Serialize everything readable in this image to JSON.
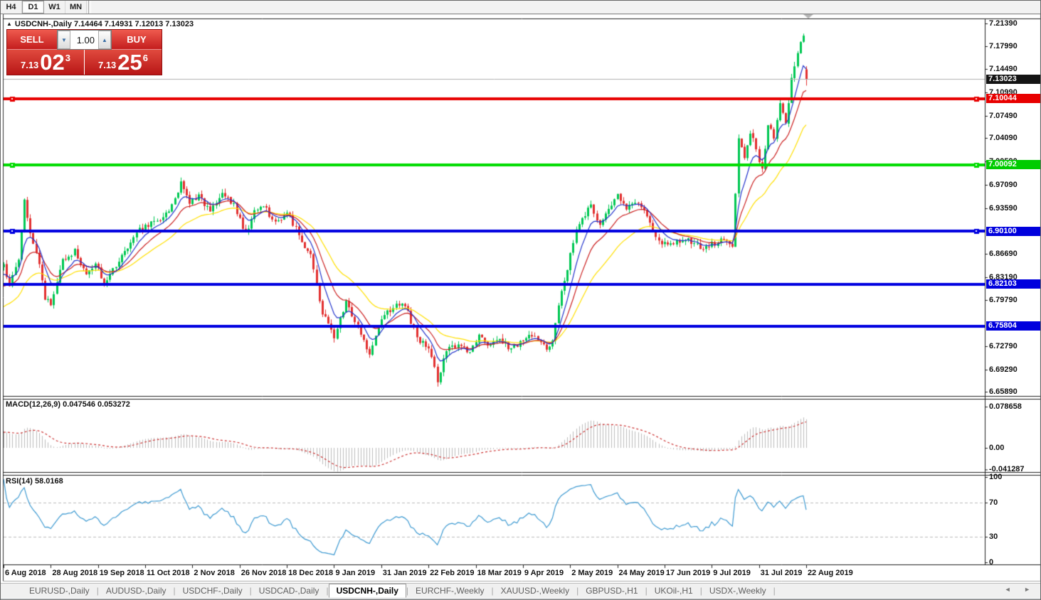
{
  "toolbar": {
    "buttons": [
      {
        "label": "H4",
        "active": false
      },
      {
        "label": "D1",
        "active": true
      },
      {
        "label": "W1",
        "active": false
      },
      {
        "label": "MN",
        "active": false
      }
    ]
  },
  "chart_header": {
    "direction_icon": "▲",
    "symbol": "USDCNH-,Daily",
    "open": "7.14464",
    "high": "7.14931",
    "low": "7.12013",
    "close": "7.13023"
  },
  "trade_panel": {
    "sell_label": "SELL",
    "buy_label": "BUY",
    "volume": "1.00",
    "down_arrow": "▼",
    "up_arrow": "▲",
    "sell_price": {
      "prefix": "7.13",
      "big": "02",
      "sup": "3"
    },
    "buy_price": {
      "prefix": "7.13",
      "big": "25",
      "sup": "6"
    }
  },
  "tabs": {
    "items": [
      {
        "label": "EURUSD-,Daily",
        "active": false
      },
      {
        "label": "AUDUSD-,Daily",
        "active": false
      },
      {
        "label": "USDCHF-,Daily",
        "active": false
      },
      {
        "label": "USDCAD-,Daily",
        "active": false
      },
      {
        "label": "USDCNH-,Daily",
        "active": true
      },
      {
        "label": "EURCHF-,Weekly",
        "active": false
      },
      {
        "label": "XAUUSD-,Weekly",
        "active": false
      },
      {
        "label": "GBPUSD-,H1",
        "active": false
      },
      {
        "label": "UKOil-,H1",
        "active": false
      },
      {
        "label": "USDX-,Weekly",
        "active": false
      }
    ],
    "left_arrow": "◄",
    "right_arrow": "►"
  },
  "chart_data": {
    "type": "candlestick",
    "title": "USDCNH-,Daily",
    "last_ohlc": {
      "open": 7.14464,
      "high": 7.14931,
      "low": 7.12013,
      "close": 7.13023
    },
    "y_axis": {
      "ticks": [
        "7.21390",
        "7.17990",
        "7.14490",
        "7.10990",
        "7.07490",
        "7.04090",
        "7.00590",
        "6.97090",
        "6.93590",
        "6.86690",
        "6.83190",
        "6.79790",
        "6.72790",
        "6.69290",
        "6.65890"
      ]
    },
    "x_axis": {
      "labels": [
        "6 Aug 2018",
        "28 Aug 2018",
        "19 Sep 2018",
        "11 Oct 2018",
        "2 Nov 2018",
        "26 Nov 2018",
        "18 Dec 2018",
        "9 Jan 2019",
        "31 Jan 2019",
        "22 Feb 2019",
        "18 Mar 2019",
        "9 Apr 2019",
        "2 May 2019",
        "24 May 2019",
        "17 Jun 2019",
        "9 Jul 2019",
        "31 Jul 2019",
        "22 Aug 2019"
      ]
    },
    "candles": {
      "count": 273,
      "seed": 42,
      "noise": 0.0045,
      "wick": 0.007,
      "up_color": "#00c853",
      "up_border": "#00a344",
      "down_color": "#e23030",
      "down_border": "#c01d1d",
      "prehistory": [
        [
          -60,
          6.64
        ],
        [
          -30,
          6.7
        ],
        [
          -15,
          6.77
        ],
        [
          -6,
          6.82
        ],
        [
          -1,
          6.85
        ]
      ],
      "waypoints": [
        [
          0,
          6.855
        ],
        [
          2,
          6.815
        ],
        [
          5,
          6.862
        ],
        [
          7,
          6.948
        ],
        [
          9,
          6.895
        ],
        [
          12,
          6.85
        ],
        [
          14,
          6.802
        ],
        [
          16,
          6.788
        ],
        [
          20,
          6.856
        ],
        [
          24,
          6.872
        ],
        [
          28,
          6.832
        ],
        [
          31,
          6.856
        ],
        [
          34,
          6.822
        ],
        [
          40,
          6.862
        ],
        [
          46,
          6.902
        ],
        [
          52,
          6.916
        ],
        [
          56,
          6.932
        ],
        [
          60,
          6.972
        ],
        [
          63,
          6.942
        ],
        [
          66,
          6.956
        ],
        [
          70,
          6.93
        ],
        [
          74,
          6.956
        ],
        [
          78,
          6.94
        ],
        [
          82,
          6.897
        ],
        [
          85,
          6.93
        ],
        [
          88,
          6.942
        ],
        [
          92,
          6.912
        ],
        [
          96,
          6.93
        ],
        [
          100,
          6.897
        ],
        [
          104,
          6.862
        ],
        [
          108,
          6.778
        ],
        [
          112,
          6.742
        ],
        [
          116,
          6.792
        ],
        [
          120,
          6.76
        ],
        [
          124,
          6.717
        ],
        [
          128,
          6.772
        ],
        [
          132,
          6.787
        ],
        [
          136,
          6.79
        ],
        [
          140,
          6.742
        ],
        [
          144,
          6.722
        ],
        [
          147,
          6.678
        ],
        [
          150,
          6.72
        ],
        [
          154,
          6.732
        ],
        [
          158,
          6.72
        ],
        [
          161,
          6.746
        ],
        [
          164,
          6.732
        ],
        [
          168,
          6.742
        ],
        [
          172,
          6.722
        ],
        [
          176,
          6.737
        ],
        [
          180,
          6.747
        ],
        [
          184,
          6.722
        ],
        [
          186,
          6.732
        ],
        [
          188,
          6.792
        ],
        [
          190,
          6.822
        ],
        [
          192,
          6.872
        ],
        [
          194,
          6.902
        ],
        [
          196,
          6.922
        ],
        [
          199,
          6.937
        ],
        [
          202,
          6.912
        ],
        [
          205,
          6.932
        ],
        [
          208,
          6.956
        ],
        [
          211,
          6.932
        ],
        [
          214,
          6.947
        ],
        [
          217,
          6.937
        ],
        [
          220,
          6.902
        ],
        [
          223,
          6.877
        ],
        [
          226,
          6.887
        ],
        [
          229,
          6.882
        ],
        [
          232,
          6.887
        ],
        [
          236,
          6.877
        ],
        [
          240,
          6.882
        ],
        [
          244,
          6.887
        ],
        [
          247,
          6.882
        ],
        [
          249,
          7.04
        ],
        [
          251,
          7.012
        ],
        [
          253,
          7.052
        ],
        [
          255,
          7.022
        ],
        [
          257,
          6.992
        ],
        [
          259,
          7.062
        ],
        [
          261,
          7.042
        ],
        [
          263,
          7.092
        ],
        [
          265,
          7.062
        ],
        [
          267,
          7.132
        ],
        [
          269,
          7.172
        ],
        [
          271,
          7.196
        ],
        [
          272,
          7.13023
        ]
      ]
    },
    "moving_averages": [
      {
        "name": "fast",
        "period": 7,
        "color": "#223ccc"
      },
      {
        "name": "medium",
        "period": 14,
        "color": "#cc2020"
      },
      {
        "name": "slow",
        "period": 28,
        "color": "#ffe000"
      }
    ],
    "hlines": [
      {
        "value": "7.10044",
        "price": 7.10044,
        "color": "#e80000",
        "label_bg": "#e80000",
        "handles": true
      },
      {
        "value": "7.00092",
        "price": 7.00092,
        "color": "#00dc00",
        "label_bg": "#00cc00",
        "handles": true
      },
      {
        "value": "6.90100",
        "price": 6.901,
        "color": "#0000e0",
        "label_bg": "#0000dd",
        "handles": true
      },
      {
        "value": "6.82103",
        "price": 6.82103,
        "color": "#0000e0",
        "label_bg": "#0000dd",
        "handles": false
      },
      {
        "value": "6.75804",
        "price": 6.75804,
        "color": "#0000e0",
        "label_bg": "#0000dd",
        "handles": false
      }
    ],
    "current_price": {
      "value": "7.13023",
      "price": 7.13023,
      "line_color": "#b0b0b0",
      "label_bg": "#141414"
    },
    "macd": {
      "label": "MACD(12,26,9)",
      "values_text": "0.047546 0.053272",
      "fast": 12,
      "slow": 26,
      "signal": 9,
      "axis": [
        "0.078658",
        "0.00",
        "-0.041287"
      ],
      "hist_color": "#bdbdbd",
      "signal_color": "#cc3232"
    },
    "rsi": {
      "label": "RSI(14)",
      "value_text": "58.0168",
      "period": 14,
      "axis": [
        "100",
        "70",
        "30",
        "0"
      ],
      "levels": [
        70,
        30
      ],
      "color": "#3d9ad2"
    }
  }
}
